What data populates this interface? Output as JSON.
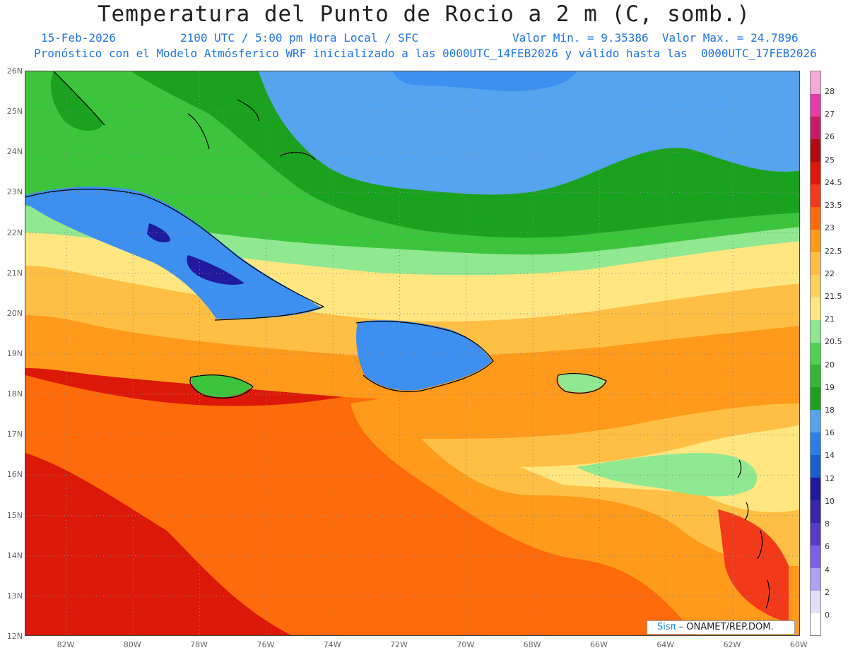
{
  "header": {
    "title": "Temperatura del Punto de Rocio a 2 m (C, somb.)",
    "date": "15-Feb-2026",
    "time": "2100 UTC / 5:00 pm Hora Local / SFC",
    "min_max": "Valor Min. = 9.35386  Valor Max. = 24.7896",
    "model_line": "Pronóstico con el Modelo Atmósferico WRF inicializado a las 0000UTC_14FEB2026 y válido hasta las  0000UTC_17FEB2026"
  },
  "map": {
    "lat_labels": [
      "26N",
      "25N",
      "24N",
      "23N",
      "22N",
      "21N",
      "20N",
      "19N",
      "18N",
      "17N",
      "16N",
      "15N",
      "14N",
      "13N",
      "12N"
    ],
    "lon_labels": [
      "82W",
      "80W",
      "78W",
      "76W",
      "74W",
      "72W",
      "70W",
      "68W",
      "66W",
      "64W",
      "62W",
      "60W"
    ],
    "bands": {
      "blue": "#3d8ff0",
      "lightblue": "#56a4f0",
      "darkgreen": "#1aa11e",
      "green": "#3cc43c",
      "lightgreen": "#90e890",
      "yellow": "#ffe680",
      "lightorange": "#ffbf45",
      "orange": "#ff9a1a",
      "red": "#f23a1a",
      "darkred": "#dc1808",
      "navy": "#1f1a9e"
    }
  },
  "colorbar": {
    "levels": [
      "0",
      "2",
      "4",
      "6",
      "8",
      "10",
      "12",
      "14",
      "16",
      "18",
      "19",
      "20",
      "20.5",
      "21",
      "21.5",
      "22",
      "22.5",
      "23",
      "23.5",
      "24.5",
      "25",
      "26",
      "27",
      "28"
    ],
    "colors": [
      "#ffffff",
      "#e0e0f8",
      "#b0a0f0",
      "#8060e0",
      "#5a3cc8",
      "#3a26a8",
      "#1f1a9e",
      "#1a5ecc",
      "#2c7ee6",
      "#56a4f0",
      "#1aa11e",
      "#33b833",
      "#4fd24f",
      "#90e890",
      "#ffe680",
      "#ffd05a",
      "#ffbf45",
      "#ff9a1a",
      "#ff6a0a",
      "#f23a1a",
      "#dc1808",
      "#b40a10",
      "#c81a66",
      "#e83aa8",
      "#f8a8d8"
    ]
  },
  "credit": {
    "logo": "Sisπ",
    "text": " – ONAMET/REP.DOM."
  }
}
